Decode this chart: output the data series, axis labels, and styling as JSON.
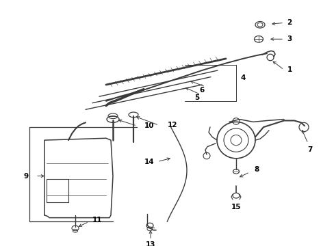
{
  "bg_color": "#ffffff",
  "line_color": "#3a3a3a",
  "label_color": "#000000",
  "fig_width": 4.89,
  "fig_height": 3.6,
  "dpi": 100,
  "label_fontsize": 7.5,
  "arrow_lw": 0.7,
  "part_lw": 0.9
}
